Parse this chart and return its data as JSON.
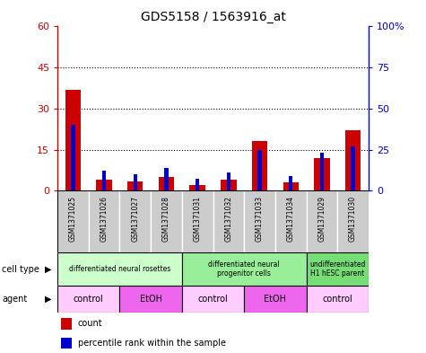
{
  "title": "GDS5158 / 1563916_at",
  "samples": [
    "GSM1371025",
    "GSM1371026",
    "GSM1371027",
    "GSM1371028",
    "GSM1371031",
    "GSM1371032",
    "GSM1371033",
    "GSM1371034",
    "GSM1371029",
    "GSM1371030"
  ],
  "counts": [
    37,
    4,
    3.5,
    5,
    2,
    4,
    18,
    3,
    12,
    22
  ],
  "percentiles": [
    40,
    12,
    10,
    14,
    7,
    11,
    25,
    9,
    23,
    27
  ],
  "left_ylim": [
    0,
    60
  ],
  "right_ylim": [
    0,
    100
  ],
  "left_yticks": [
    0,
    15,
    30,
    45,
    60
  ],
  "right_yticks": [
    0,
    25,
    50,
    75,
    100
  ],
  "left_yticklabels": [
    "0",
    "15",
    "30",
    "45",
    "60"
  ],
  "right_yticklabels": [
    "0",
    "25",
    "50",
    "75",
    "100%"
  ],
  "bar_color": "#cc0000",
  "pct_color": "#0000cc",
  "cell_type_groups": [
    {
      "label": "differentiated neural rosettes",
      "start": 0,
      "end": 4,
      "color": "#ccffcc"
    },
    {
      "label": "differentiated neural\nprogenitor cells",
      "start": 4,
      "end": 8,
      "color": "#99ee99"
    },
    {
      "label": "undifferentiated\nH1 hESC parent",
      "start": 8,
      "end": 10,
      "color": "#77dd77"
    }
  ],
  "agent_groups": [
    {
      "label": "control",
      "start": 0,
      "end": 2,
      "color": "#ffccff"
    },
    {
      "label": "EtOH",
      "start": 2,
      "end": 4,
      "color": "#ee66ee"
    },
    {
      "label": "control",
      "start": 4,
      "end": 6,
      "color": "#ffccff"
    },
    {
      "label": "EtOH",
      "start": 6,
      "end": 8,
      "color": "#ee66ee"
    },
    {
      "label": "control",
      "start": 8,
      "end": 10,
      "color": "#ffccff"
    }
  ],
  "count_label": "count",
  "pct_label": "percentile rank within the sample",
  "bar_width": 0.5,
  "pct_bar_width": 0.12,
  "sample_bg": "#cccccc"
}
